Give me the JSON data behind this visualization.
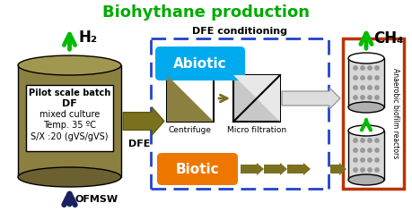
{
  "title": "Biohythane production",
  "title_color": "#00AA00",
  "background_color": "#FFFFFF",
  "border_color": "#5588CC",
  "fermenter_color": "#8B8040",
  "fermenter_top_color": "#A09850",
  "fermenter_bot_color": "#6B6030",
  "fermenter_text": [
    "Pilot scale batch",
    "DF",
    "mixed culture",
    "Temp. 35 ºC",
    "S/X :20 (gVS/gVS)"
  ],
  "h2_label": "H₂",
  "ch4_label": "CH₄",
  "ofmsw_label": "OFMSW",
  "dfe_label": "DFE",
  "dfe_conditioning_label": "DFE conditioning",
  "centrifuge_label": "Centrifuge",
  "micro_filtration_label": "Micro filtration",
  "abiotic_label": "Abiotic",
  "biotic_label": "Biotic",
  "reactor_label": "Anaerobic biofilm reactors",
  "arrow_green": "#00BB00",
  "arrow_dark": "#7A7020",
  "arrow_navy": "#1A2060",
  "abiotic_color": "#00AAEE",
  "biotic_color": "#EE7700",
  "reactor_border": "#BB3300",
  "dfe_box_border": "#2244CC",
  "centrifuge_dark": "#8B8040",
  "mf_bg": "#C8C8C8",
  "mf_light": "#E8E8E8"
}
